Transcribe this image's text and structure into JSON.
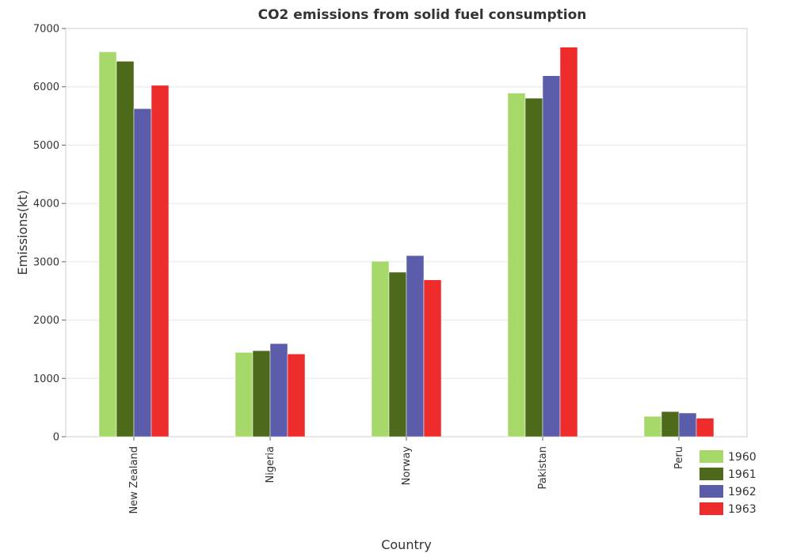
{
  "chart_data": {
    "type": "bar",
    "title": "CO2 emissions from solid fuel consumption",
    "xlabel": "Country",
    "ylabel": "Emissions(kt)",
    "categories": [
      "New Zealand",
      "Nigeria",
      "Norway",
      "Pakistan",
      "Peru"
    ],
    "series": [
      {
        "name": "1960",
        "color": "#a6d96a",
        "values": [
          6600,
          1446,
          3010,
          5892,
          350
        ]
      },
      {
        "name": "1961",
        "color": "#4d6a1a",
        "values": [
          6438,
          1476,
          2822,
          5805,
          432
        ]
      },
      {
        "name": "1962",
        "color": "#5b5dab",
        "values": [
          5625,
          1597,
          3106,
          6190,
          407
        ]
      },
      {
        "name": "1963",
        "color": "#ee2c2c",
        "values": [
          6025,
          1419,
          2690,
          6680,
          318
        ]
      }
    ],
    "ylim": [
      0,
      7000
    ],
    "yticks": [
      0,
      1000,
      2000,
      3000,
      4000,
      5000,
      6000,
      7000
    ],
    "grid": true,
    "legend_position": "bottom-right"
  }
}
